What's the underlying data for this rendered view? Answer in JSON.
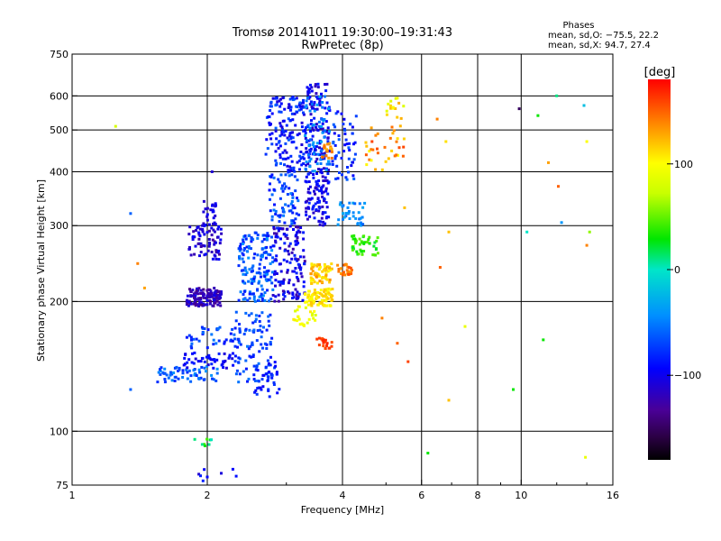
{
  "chart_data": {
    "type": "scatter",
    "title": "Tromsø 20141011 19:30:00–19:31:43",
    "subtitle": "RwPretec (8p)",
    "xlabel": "Frequency [MHz]",
    "ylabel": "Stationary phase Virtual Height [km]",
    "x_scale": "log",
    "y_scale": "log",
    "xlim": [
      1,
      16
    ],
    "ylim": [
      75,
      750
    ],
    "x_ticks": [
      1,
      2,
      4,
      6,
      8,
      10,
      16
    ],
    "x_tick_labels": [
      "1",
      "2",
      "4",
      "6",
      "8",
      "10",
      "16"
    ],
    "y_ticks": [
      75,
      100,
      200,
      300,
      400,
      500,
      600,
      750
    ],
    "y_tick_labels": [
      "75",
      "100",
      "200",
      "300",
      "400",
      "500",
      "600",
      "750"
    ],
    "x_gridlines": [
      2,
      4,
      6,
      8,
      10
    ],
    "y_gridlines": [
      100,
      200,
      300,
      400,
      500,
      600
    ],
    "grid": true,
    "stats": {
      "heading": "Phases",
      "line_o": "mean, sd,O: −75.5, 22.2",
      "line_x": "mean, sd,X:  94.7, 27.4"
    },
    "colorbar": {
      "label": "[deg]",
      "range": [
        -180,
        180
      ],
      "ticks": [
        100,
        0,
        -100
      ],
      "tick_labels": [
        "100",
        "0",
        "−100"
      ],
      "colormap": "rainbow"
    },
    "clusters": [
      {
        "x": [
          1.8,
          2.15
        ],
        "y": [
          195,
          215
        ],
        "phase": [
          -140,
          -100
        ],
        "n": 140
      },
      {
        "x": [
          1.82,
          2.15
        ],
        "y": [
          250,
          300
        ],
        "phase": [
          -130,
          -90
        ],
        "n": 70
      },
      {
        "x": [
          1.95,
          2.1
        ],
        "y": [
          300,
          345
        ],
        "phase": [
          -120,
          -95
        ],
        "n": 25
      },
      {
        "x": [
          1.55,
          2.15
        ],
        "y": [
          130,
          142
        ],
        "phase": [
          -80,
          -40
        ],
        "n": 60
      },
      {
        "x": [
          1.75,
          2.3
        ],
        "y": [
          140,
          152
        ],
        "phase": [
          -110,
          -80
        ],
        "n": 45
      },
      {
        "x": [
          1.8,
          2.4
        ],
        "y": [
          155,
          175
        ],
        "phase": [
          -90,
          -50
        ],
        "n": 45
      },
      {
        "x": [
          2.35,
          2.8
        ],
        "y": [
          200,
          290
        ],
        "phase": [
          -90,
          -40
        ],
        "n": 160
      },
      {
        "x": [
          2.3,
          2.8
        ],
        "y": [
          130,
          190
        ],
        "phase": [
          -90,
          -50
        ],
        "n": 90
      },
      {
        "x": [
          2.55,
          2.9
        ],
        "y": [
          120,
          145
        ],
        "phase": [
          -100,
          -70
        ],
        "n": 35
      },
      {
        "x": [
          2.8,
          3.3
        ],
        "y": [
          200,
          300
        ],
        "phase": [
          -130,
          -80
        ],
        "n": 140
      },
      {
        "x": [
          2.7,
          3.3
        ],
        "y": [
          400,
          600
        ],
        "phase": [
          -110,
          -60
        ],
        "n": 150
      },
      {
        "x": [
          2.75,
          3.2
        ],
        "y": [
          300,
          400
        ],
        "phase": [
          -90,
          -50
        ],
        "n": 70
      },
      {
        "x": [
          3.3,
          3.75
        ],
        "y": [
          300,
          640
        ],
        "phase": [
          -120,
          -80
        ],
        "n": 220
      },
      {
        "x": [
          3.3,
          3.75
        ],
        "y": [
          400,
          600
        ],
        "phase": [
          -60,
          -30
        ],
        "n": 60
      },
      {
        "x": [
          3.3,
          3.8
        ],
        "y": [
          195,
          215
        ],
        "phase": [
          95,
          120
        ],
        "n": 90
      },
      {
        "x": [
          3.4,
          3.8
        ],
        "y": [
          220,
          245
        ],
        "phase": [
          100,
          140
        ],
        "n": 60
      },
      {
        "x": [
          3.1,
          3.5
        ],
        "y": [
          175,
          195
        ],
        "phase": [
          80,
          110
        ],
        "n": 25
      },
      {
        "x": [
          3.5,
          3.8
        ],
        "y": [
          155,
          165
        ],
        "phase": [
          150,
          170
        ],
        "n": 20
      },
      {
        "x": [
          3.6,
          3.8
        ],
        "y": [
          430,
          470
        ],
        "phase": [
          120,
          150
        ],
        "n": 20
      },
      {
        "x": [
          3.9,
          4.2
        ],
        "y": [
          230,
          245
        ],
        "phase": [
          130,
          160
        ],
        "n": 25
      },
      {
        "x": [
          4.2,
          4.8
        ],
        "y": [
          255,
          285
        ],
        "phase": [
          20,
          50
        ],
        "n": 45
      },
      {
        "x": [
          3.9,
          4.5
        ],
        "y": [
          300,
          340
        ],
        "phase": [
          -60,
          -30
        ],
        "n": 35
      },
      {
        "x": [
          3.8,
          4.3
        ],
        "y": [
          380,
          560
        ],
        "phase": [
          -100,
          -60
        ],
        "n": 55
      },
      {
        "x": [
          4.5,
          5.5
        ],
        "y": [
          400,
          520
        ],
        "phase": [
          100,
          160
        ],
        "n": 35
      },
      {
        "x": [
          5.0,
          5.5
        ],
        "y": [
          530,
          600
        ],
        "phase": [
          80,
          130
        ],
        "n": 15
      },
      {
        "x": [
          1.85,
          2.05
        ],
        "y": [
          92,
          98
        ],
        "phase": [
          0,
          50
        ],
        "n": 8
      },
      {
        "x": [
          1.9,
          2.35
        ],
        "y": [
          76,
          82
        ],
        "phase": [
          -120,
          -80
        ],
        "n": 8
      }
    ],
    "points": [
      {
        "x": 1.25,
        "y": 510,
        "phase": 80
      },
      {
        "x": 1.35,
        "y": 320,
        "phase": -60
      },
      {
        "x": 1.4,
        "y": 245,
        "phase": 140
      },
      {
        "x": 1.45,
        "y": 215,
        "phase": 130
      },
      {
        "x": 1.35,
        "y": 125,
        "phase": -60
      },
      {
        "x": 2.05,
        "y": 400,
        "phase": -110
      },
      {
        "x": 6.5,
        "y": 530,
        "phase": 140
      },
      {
        "x": 6.6,
        "y": 240,
        "phase": 150
      },
      {
        "x": 6.8,
        "y": 470,
        "phase": 110
      },
      {
        "x": 6.9,
        "y": 290,
        "phase": 120
      },
      {
        "x": 7.5,
        "y": 175,
        "phase": 90
      },
      {
        "x": 6.9,
        "y": 118,
        "phase": 120
      },
      {
        "x": 6.2,
        "y": 89,
        "phase": 30
      },
      {
        "x": 9.9,
        "y": 560,
        "phase": -150
      },
      {
        "x": 10.3,
        "y": 290,
        "phase": 0
      },
      {
        "x": 10.9,
        "y": 540,
        "phase": 30
      },
      {
        "x": 11.5,
        "y": 420,
        "phase": 130
      },
      {
        "x": 12.1,
        "y": 370,
        "phase": 150
      },
      {
        "x": 12.3,
        "y": 305,
        "phase": -40
      },
      {
        "x": 12.0,
        "y": 600,
        "phase": 10
      },
      {
        "x": 14.0,
        "y": 470,
        "phase": 100
      },
      {
        "x": 14.2,
        "y": 290,
        "phase": 60
      },
      {
        "x": 14.0,
        "y": 270,
        "phase": 140
      },
      {
        "x": 13.8,
        "y": 570,
        "phase": -20
      },
      {
        "x": 13.9,
        "y": 87,
        "phase": 90
      },
      {
        "x": 11.2,
        "y": 163,
        "phase": 30
      },
      {
        "x": 9.6,
        "y": 125,
        "phase": 30
      },
      {
        "x": 5.3,
        "y": 160,
        "phase": 150
      },
      {
        "x": 5.5,
        "y": 330,
        "phase": 120
      },
      {
        "x": 4.9,
        "y": 183,
        "phase": 140
      },
      {
        "x": 5.6,
        "y": 145,
        "phase": 160
      }
    ]
  }
}
